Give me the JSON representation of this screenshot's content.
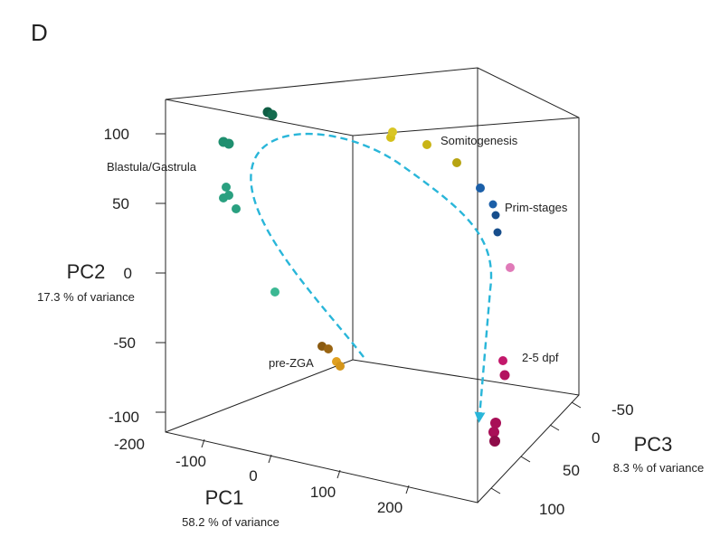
{
  "panel_label": "D",
  "chart_data": {
    "type": "scatter",
    "title": "",
    "axes": {
      "pc1": {
        "name": "PC1",
        "subtitle": "58.2 % of variance",
        "ticks": [
          -100,
          0,
          100,
          200
        ],
        "range": [
          -200,
          260
        ]
      },
      "pc2": {
        "name": "PC2",
        "subtitle": "17.3 % of variance",
        "ticks": [
          100,
          50,
          0,
          -50,
          -100
        ],
        "range": [
          -100,
          125
        ]
      },
      "pc3": {
        "name": "PC3",
        "subtitle": "8.3 % of variance",
        "ticks": [
          -50,
          0,
          50,
          100
        ],
        "range": [
          -70,
          120
        ]
      },
      "extra_tick": "-200"
    },
    "groups": [
      {
        "label": "Blastula/Gastrula",
        "color": "#1f8f6f"
      },
      {
        "label": "Somitogenesis",
        "color": "#d4c01a"
      },
      {
        "label": "Prim-stages",
        "color": "#1b5fa8"
      },
      {
        "label": "2-5 dpf",
        "color": "#c2186b"
      },
      {
        "label": "pre-ZGA",
        "color": "#c9860e"
      }
    ],
    "trajectory_color": "#29b6d9"
  }
}
